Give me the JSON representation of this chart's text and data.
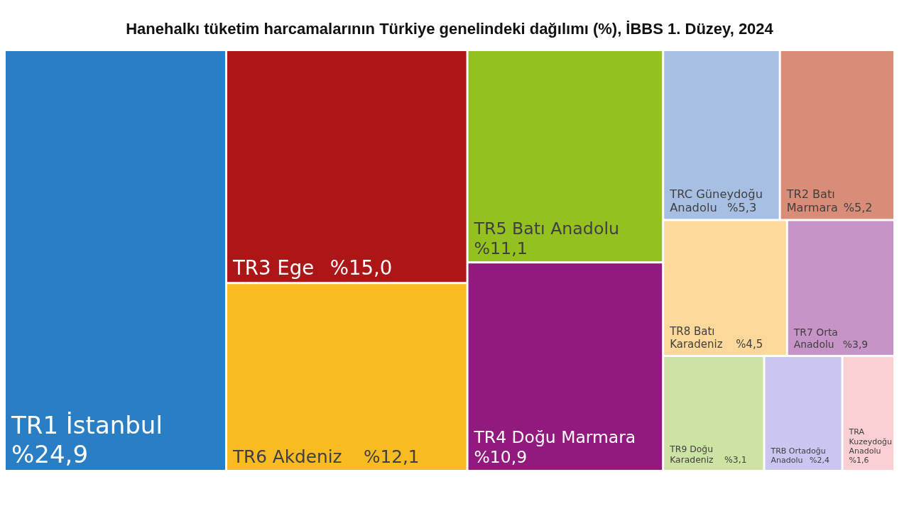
{
  "chart_data": {
    "type": "other",
    "title": "Hanehalkı tüketim harcamalarının Türkiye genelindeki dağılımı (%), İBBS 1. Düzey, 2024",
    "categories": [
      "TR1 İstanbul",
      "TR3 Ege",
      "TR6 Akdeniz",
      "TR5 Batı Anadolu",
      "TR4 Doğu Marmara",
      "TRC Güneydoğu Anadolu",
      "TR2 Batı Marmara",
      "TR8 Batı Karadeniz",
      "TR7 Orta Anadolu",
      "TR9 Doğu Karadeniz",
      "TRB Ortadoğu Anadolu",
      "TRA Kuzeydoğu Anadolu"
    ],
    "values": [
      24.9,
      15.0,
      12.1,
      11.1,
      10.9,
      5.3,
      5.2,
      4.5,
      3.9,
      3.1,
      2.4,
      1.6
    ],
    "colors": [
      "#2a7fc4",
      "#ad1616",
      "#f9bb22",
      "#94c11f",
      "#921a7e",
      "#a7bfe2",
      "#d98c77",
      "#fcd99a",
      "#c694c6",
      "#cde3a4",
      "#c9c6f2",
      "#f9cfd3"
    ],
    "value_labels": [
      "%24,9",
      "%15,0",
      "%12,1",
      "%11,1",
      "%10,9",
      "%5,3",
      "%5,2",
      "%4,5",
      "%3,9",
      "%3,1",
      "%2,4",
      "%1,6"
    ]
  }
}
